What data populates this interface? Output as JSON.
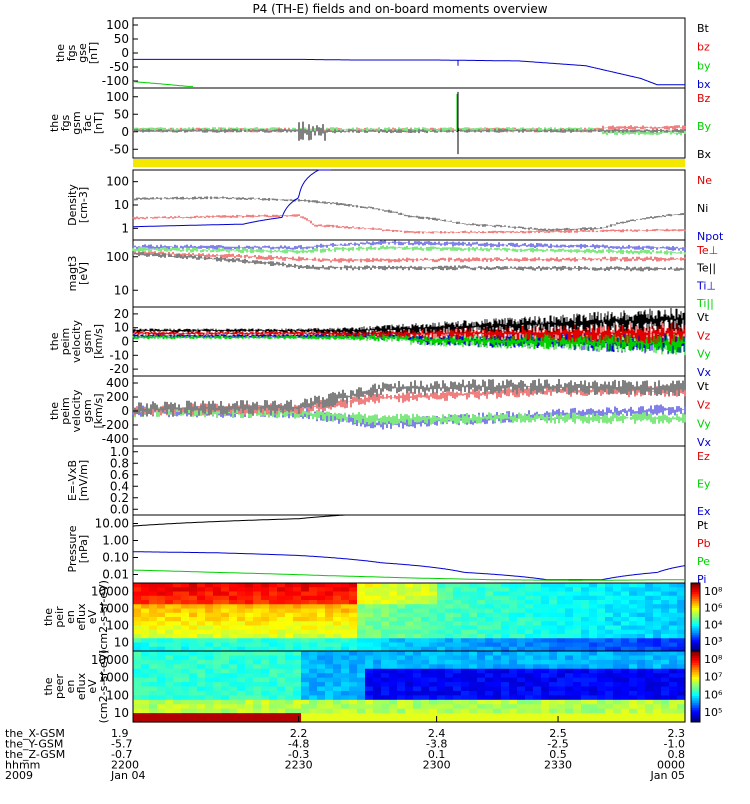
{
  "title": "P4 (TH-E) fields and on-board moments overview",
  "colors": {
    "black": "#000000",
    "red": "#e00000",
    "green": "#00d000",
    "blue": "#0000d0",
    "yellow": "#f5e800"
  },
  "chart_data": [
    {
      "type": "line",
      "panel": "fgs_gse",
      "ylabel": "the fgs gse [nT]",
      "ylim": [
        -110,
        110
      ],
      "yticks": [
        "100",
        "50",
        "0",
        "-50",
        "-100"
      ],
      "legend": [
        "Bt",
        "bz",
        "by",
        "bx"
      ],
      "series": [
        {
          "name": "bx",
          "x": [
            0,
            0.3,
            0.4,
            0.55,
            0.7,
            0.82,
            0.92,
            0.95
          ],
          "values": [
            -20,
            -20,
            -22,
            -22,
            -25,
            -40,
            -80,
            -100
          ]
        },
        {
          "name": "by",
          "x": [
            0,
            0.05,
            0.1
          ],
          "values": [
            -90,
            -97,
            -105
          ]
        }
      ]
    },
    {
      "type": "line",
      "panel": "fgs_gsm_fac",
      "ylabel": "the fgs gsm fac [nT]",
      "ylim": [
        -70,
        110
      ],
      "yticks": [
        "100",
        "50",
        "0",
        "-50"
      ],
      "legend": [
        "Bz",
        "By",
        "Bx"
      ]
    },
    {
      "type": "line",
      "panel": "density",
      "ylabel": "Density [cm-3]",
      "yscale": "log",
      "yticks": [
        "100",
        "10",
        "1"
      ],
      "legend": [
        "Ne",
        "Ni",
        "Npot"
      ],
      "series": [
        {
          "name": "Ni",
          "x": [
            0,
            0.15,
            0.3,
            0.4,
            0.5,
            0.6,
            0.75,
            0.85,
            1.0
          ],
          "values": [
            9,
            10,
            8,
            5,
            2,
            1,
            0.6,
            0.7,
            2.5
          ]
        },
        {
          "name": "Ne",
          "x": [
            0,
            0.2,
            0.3,
            0.33,
            0.5,
            0.7,
            1.0
          ],
          "values": [
            1.7,
            2,
            2.1,
            0.9,
            0.5,
            0.5,
            0.6
          ]
        },
        {
          "name": "Npot",
          "x": [
            0,
            0.2,
            0.27,
            0.3,
            0.35
          ],
          "values": [
            0.8,
            1,
            1.8,
            10,
            150
          ]
        }
      ]
    },
    {
      "type": "line",
      "panel": "temperature",
      "ylabel": "magt3 [eV]",
      "yscale": "log",
      "yticks": [
        "100",
        "10"
      ],
      "legend": [
        "Te⊥",
        "Te||",
        "Ti⊥",
        "Ti||"
      ]
    },
    {
      "type": "line",
      "panel": "velocity_peim",
      "ylabel": "the peim velocity gsm [km/s]",
      "ylim": [
        -30,
        20
      ],
      "yticks": [
        "20",
        "10",
        "0",
        "-10",
        "-20"
      ],
      "legend": [
        "Vt",
        "Vz",
        "Vy",
        "Vx"
      ]
    },
    {
      "type": "line",
      "panel": "velocity_peim_2",
      "ylabel": "the peim velocity gsm [km/s]",
      "ylim": [
        -400,
        400
      ],
      "yticks": [
        "400",
        "200",
        "0",
        "-200",
        "-400"
      ],
      "legend": [
        "Vt",
        "Vz",
        "Vy",
        "Vx"
      ]
    },
    {
      "type": "line",
      "panel": "efield",
      "ylabel": "E=-VxB [mV/m]",
      "ylim": [
        0,
        1
      ],
      "yticks": [
        "1.0",
        "0.8",
        "0.6",
        "0.4",
        "0.2",
        "0.0"
      ],
      "legend": [
        "Ez",
        "Ey",
        "Ex"
      ]
    },
    {
      "type": "line",
      "panel": "pressure",
      "ylabel": "Pressure [nPa]",
      "yscale": "log",
      "yticks": [
        "10.00",
        "1.00",
        "0.10",
        "0.01"
      ],
      "legend": [
        "Pt",
        "Pb",
        "Pe",
        "Pi"
      ],
      "series": [
        {
          "name": "Pt",
          "x": [
            0,
            0.3,
            0.5
          ],
          "values": [
            10,
            25,
            60
          ]
        },
        {
          "name": "Pi",
          "x": [
            0,
            0.15,
            0.3,
            0.45,
            0.6,
            0.75,
            0.85,
            0.95,
            1.0
          ],
          "values": [
            0.4,
            0.35,
            0.25,
            0.1,
            0.03,
            0.012,
            0.012,
            0.03,
            0.07
          ]
        },
        {
          "name": "Pe",
          "x": [
            0,
            0.15,
            0.35,
            0.5,
            0.65,
            0.8,
            1.0
          ],
          "values": [
            0.04,
            0.03,
            0.02,
            0.015,
            0.012,
            0.011,
            0.012
          ]
        }
      ]
    },
    {
      "type": "heatmap",
      "panel": "peir_en_eflux",
      "ylabel": "the peir en eflux eV (cm2-s-sr-eV)",
      "yticks": [
        "10000",
        "1000",
        "100",
        "10"
      ],
      "colorbar_ticks": [
        "10⁸",
        "10⁶",
        "10⁴",
        "10³"
      ]
    },
    {
      "type": "heatmap",
      "panel": "peer_en_eflux",
      "ylabel": "the peer en eflux eV (cm2-s-sr-eV)",
      "yticks": [
        "10000",
        "1000",
        "100",
        "10"
      ],
      "colorbar_ticks": [
        "10⁸",
        "10⁷",
        "10⁶",
        "10⁵"
      ]
    }
  ],
  "xaxis": {
    "row_labels": [
      "the_X-GSM",
      "the_Y-GSM",
      "the_Z-GSM",
      "hhmm",
      "2009"
    ],
    "columns": [
      [
        "1.9",
        "-5.7",
        "-0.7",
        "2200",
        "Jan 04"
      ],
      [
        "2.2",
        "-4.8",
        "-0.3",
        "2230",
        ""
      ],
      [
        "2.4",
        "-3.8",
        "0.1",
        "2300",
        ""
      ],
      [
        "2.5",
        "-2.5",
        "0.5",
        "2330",
        ""
      ],
      [
        "2.3",
        "-1.0",
        "0.8",
        "0000",
        "Jan 05"
      ]
    ]
  }
}
